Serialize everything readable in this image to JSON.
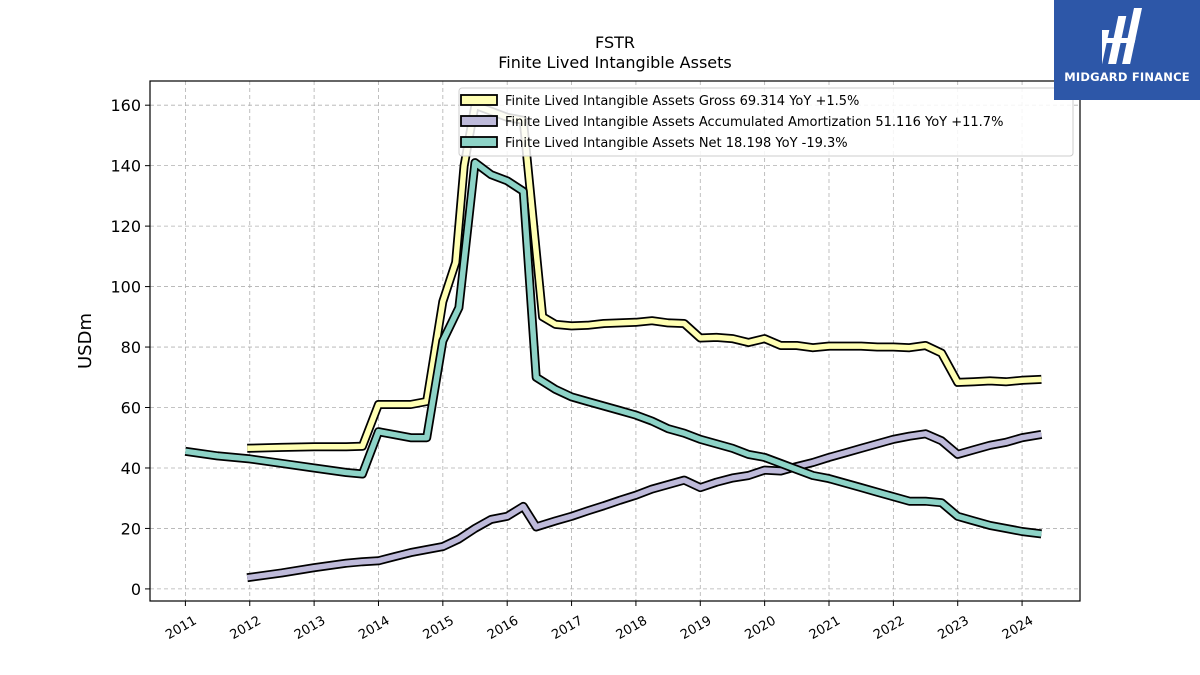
{
  "chart_data": {
    "type": "line",
    "title": "FSTR",
    "subtitle": "Finite Lived Intangible Assets",
    "ylabel": "USDm",
    "xlabel": "",
    "xlim": [
      2010.45,
      2024.9
    ],
    "ylim": [
      -4,
      168
    ],
    "yticks": [
      0,
      20,
      40,
      60,
      80,
      100,
      120,
      140,
      160
    ],
    "xticks": [
      "2011",
      "2012",
      "2013",
      "2014",
      "2015",
      "2016",
      "2017",
      "2018",
      "2019",
      "2020",
      "2021",
      "2022",
      "2023",
      "2024"
    ],
    "grid": true,
    "legend_position": "top-right",
    "series": [
      {
        "name": "Finite Lived Intangible Assets Gross",
        "legend": "Finite Lived Intangible Assets Gross  69.314 YoY +1.5%",
        "color": "#ffffb3",
        "points": [
          [
            2011.96,
            46.5
          ],
          [
            2012.5,
            46.8
          ],
          [
            2013.0,
            47.0
          ],
          [
            2013.5,
            47.0
          ],
          [
            2013.75,
            47.2
          ],
          [
            2014.0,
            61.0
          ],
          [
            2014.25,
            61.0
          ],
          [
            2014.5,
            61.0
          ],
          [
            2014.75,
            62.0
          ],
          [
            2015.0,
            95.0
          ],
          [
            2015.2,
            108.0
          ],
          [
            2015.33,
            140.0
          ],
          [
            2015.5,
            160.0
          ],
          [
            2015.75,
            158.0
          ],
          [
            2016.0,
            156.0
          ],
          [
            2016.25,
            155.0
          ],
          [
            2016.55,
            90.0
          ],
          [
            2016.75,
            87.5
          ],
          [
            2017.0,
            87.0
          ],
          [
            2017.25,
            87.2
          ],
          [
            2017.5,
            87.8
          ],
          [
            2017.75,
            88.0
          ],
          [
            2018.0,
            88.2
          ],
          [
            2018.25,
            88.7
          ],
          [
            2018.5,
            88.0
          ],
          [
            2018.75,
            87.8
          ],
          [
            2019.0,
            83.0
          ],
          [
            2019.25,
            83.2
          ],
          [
            2019.5,
            82.8
          ],
          [
            2019.75,
            81.5
          ],
          [
            2020.0,
            82.8
          ],
          [
            2020.25,
            80.5
          ],
          [
            2020.5,
            80.5
          ],
          [
            2020.75,
            79.8
          ],
          [
            2021.0,
            80.3
          ],
          [
            2021.25,
            80.3
          ],
          [
            2021.5,
            80.3
          ],
          [
            2021.75,
            80.0
          ],
          [
            2022.0,
            80.0
          ],
          [
            2022.25,
            79.8
          ],
          [
            2022.5,
            80.5
          ],
          [
            2022.75,
            78.0
          ],
          [
            2023.0,
            68.3
          ],
          [
            2023.25,
            68.5
          ],
          [
            2023.5,
            68.8
          ],
          [
            2023.75,
            68.5
          ],
          [
            2024.0,
            69.0
          ],
          [
            2024.3,
            69.3
          ]
        ]
      },
      {
        "name": "Finite Lived Intangible Assets Accumulated Amortization",
        "legend": "Finite Lived Intangible Assets Accumulated Amortization  51.116 YoY +11.7%",
        "color": "#bebada",
        "points": [
          [
            2011.96,
            3.7
          ],
          [
            2012.5,
            5.3
          ],
          [
            2013.0,
            7.0
          ],
          [
            2013.5,
            8.5
          ],
          [
            2013.75,
            9.0
          ],
          [
            2014.0,
            9.3
          ],
          [
            2014.25,
            10.7
          ],
          [
            2014.5,
            12.0
          ],
          [
            2014.75,
            13.0
          ],
          [
            2015.0,
            14.0
          ],
          [
            2015.25,
            16.5
          ],
          [
            2015.5,
            20.0
          ],
          [
            2015.75,
            23.0
          ],
          [
            2016.0,
            24.0
          ],
          [
            2016.25,
            27.3
          ],
          [
            2016.45,
            20.5
          ],
          [
            2016.75,
            22.5
          ],
          [
            2017.0,
            24.0
          ],
          [
            2017.25,
            25.8
          ],
          [
            2017.5,
            27.5
          ],
          [
            2017.75,
            29.3
          ],
          [
            2018.0,
            31.0
          ],
          [
            2018.25,
            33.0
          ],
          [
            2018.5,
            34.5
          ],
          [
            2018.75,
            36.0
          ],
          [
            2019.0,
            33.5
          ],
          [
            2019.25,
            35.3
          ],
          [
            2019.5,
            36.7
          ],
          [
            2019.75,
            37.5
          ],
          [
            2020.0,
            39.3
          ],
          [
            2020.25,
            39.0
          ],
          [
            2020.5,
            40.5
          ],
          [
            2020.75,
            41.8
          ],
          [
            2021.0,
            43.5
          ],
          [
            2021.25,
            45.0
          ],
          [
            2021.5,
            46.5
          ],
          [
            2021.75,
            48.0
          ],
          [
            2022.0,
            49.5
          ],
          [
            2022.25,
            50.5
          ],
          [
            2022.5,
            51.3
          ],
          [
            2022.75,
            49.0
          ],
          [
            2023.0,
            44.5
          ],
          [
            2023.25,
            46.0
          ],
          [
            2023.5,
            47.5
          ],
          [
            2023.75,
            48.5
          ],
          [
            2024.0,
            50.0
          ],
          [
            2024.3,
            51.1
          ]
        ]
      },
      {
        "name": "Finite Lived Intangible Assets Net",
        "legend": "Finite Lived Intangible Assets Net  18.198 YoY -19.3%",
        "color": "#8dd3c7",
        "points": [
          [
            2011.0,
            45.5
          ],
          [
            2011.5,
            44.0
          ],
          [
            2012.0,
            43.0
          ],
          [
            2012.5,
            41.5
          ],
          [
            2013.0,
            40.0
          ],
          [
            2013.5,
            38.5
          ],
          [
            2013.75,
            38.0
          ],
          [
            2014.0,
            52.0
          ],
          [
            2014.25,
            51.0
          ],
          [
            2014.5,
            50.0
          ],
          [
            2014.75,
            50.0
          ],
          [
            2015.0,
            82.0
          ],
          [
            2015.25,
            93.0
          ],
          [
            2015.5,
            141.0
          ],
          [
            2015.75,
            137.0
          ],
          [
            2016.0,
            135.0
          ],
          [
            2016.25,
            131.5
          ],
          [
            2016.45,
            70.0
          ],
          [
            2016.75,
            66.0
          ],
          [
            2017.0,
            63.5
          ],
          [
            2017.25,
            62.0
          ],
          [
            2017.5,
            60.5
          ],
          [
            2017.75,
            59.0
          ],
          [
            2018.0,
            57.5
          ],
          [
            2018.25,
            55.5
          ],
          [
            2018.5,
            53.0
          ],
          [
            2018.75,
            51.5
          ],
          [
            2019.0,
            49.5
          ],
          [
            2019.25,
            48.0
          ],
          [
            2019.5,
            46.5
          ],
          [
            2019.75,
            44.5
          ],
          [
            2020.0,
            43.5
          ],
          [
            2020.25,
            41.5
          ],
          [
            2020.5,
            39.5
          ],
          [
            2020.75,
            37.5
          ],
          [
            2021.0,
            36.5
          ],
          [
            2021.25,
            35.0
          ],
          [
            2021.5,
            33.5
          ],
          [
            2021.75,
            32.0
          ],
          [
            2022.0,
            30.5
          ],
          [
            2022.25,
            29.0
          ],
          [
            2022.5,
            29.0
          ],
          [
            2022.75,
            28.5
          ],
          [
            2023.0,
            24.0
          ],
          [
            2023.25,
            22.5
          ],
          [
            2023.5,
            21.0
          ],
          [
            2023.75,
            20.0
          ],
          [
            2024.0,
            19.0
          ],
          [
            2024.3,
            18.2
          ]
        ]
      }
    ]
  },
  "logo": {
    "text": "MIDGARD FINANCE",
    "background": "#2d57a8"
  }
}
